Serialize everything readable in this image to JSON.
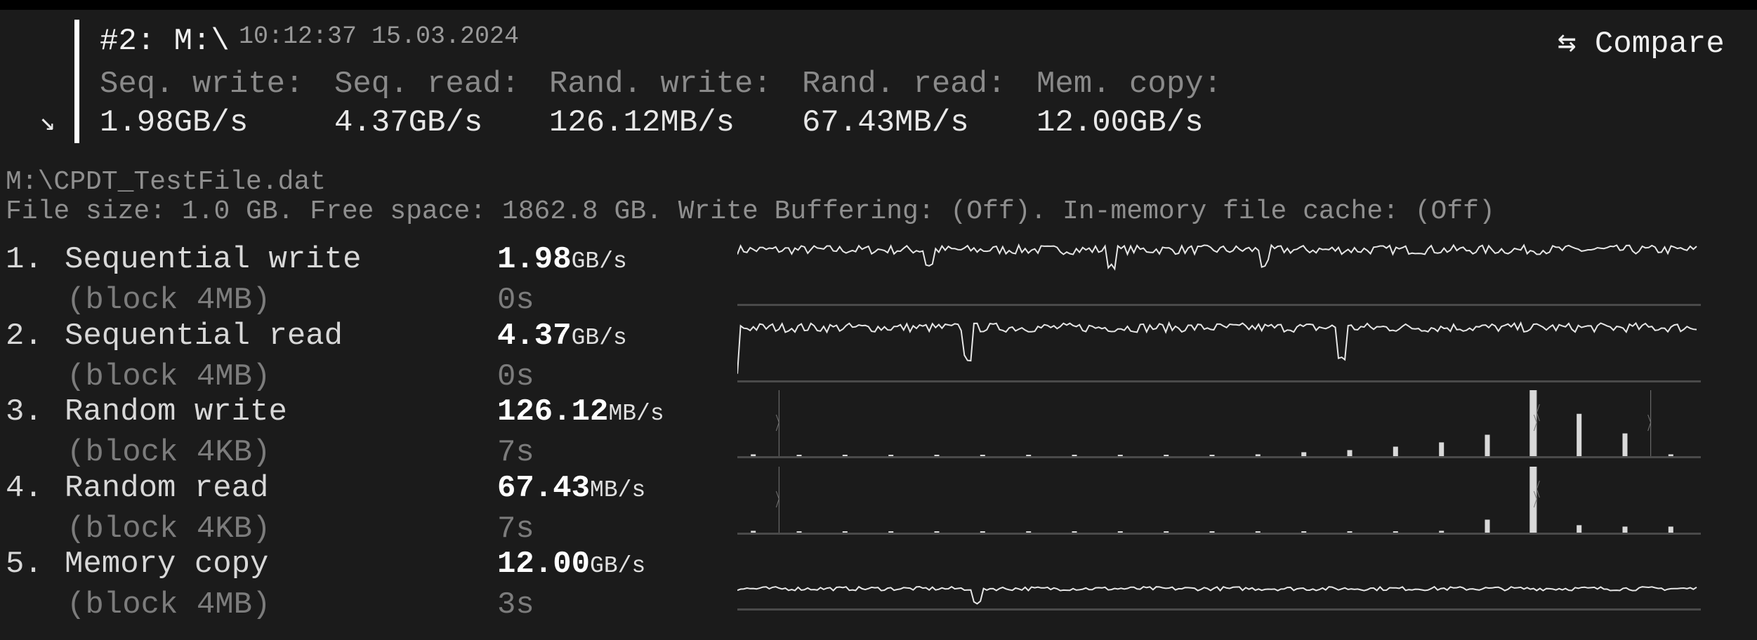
{
  "header": {
    "title": "#2: M:\\",
    "timestamp": "10:12:37 15.03.2024",
    "compare_label": "⇆ Compare",
    "collapse_icon": "↘",
    "columns": [
      {
        "label": "Seq. write:",
        "value": "1.98GB/s"
      },
      {
        "label": "Seq. read:",
        "value": "4.37GB/s"
      },
      {
        "label": "Rand. write:",
        "value": "126.12MB/s"
      },
      {
        "label": "Rand. read:",
        "value": "67.43MB/s"
      },
      {
        "label": "Mem. copy:",
        "value": "12.00GB/s"
      }
    ]
  },
  "file": {
    "path": "M:\\CPDT_TestFile.dat",
    "info": "File size: 1.0 GB. Free space: 1862.8 GB. Write Buffering: (Off). In-memory file cache: (Off)"
  },
  "tests": [
    {
      "num": "1.",
      "name": "Sequential write",
      "block": "(block 4MB)",
      "value": "1.98",
      "unit": "GB/s",
      "time": "0s"
    },
    {
      "num": "2.",
      "name": "Sequential read",
      "block": "(block 4MB)",
      "value": "4.37",
      "unit": "GB/s",
      "time": "0s"
    },
    {
      "num": "3.",
      "name": "Random write",
      "block": "(block 4KB)",
      "value": "126.12",
      "unit": "MB/s",
      "time": "7s"
    },
    {
      "num": "4.",
      "name": "Random read",
      "block": "(block 4KB)",
      "value": "67.43",
      "unit": "MB/s",
      "time": "7s"
    },
    {
      "num": "5.",
      "name": "Memory copy",
      "block": "(block 4MB)",
      "value": "12.00",
      "unit": "GB/s",
      "time": "3s"
    }
  ],
  "colors": {
    "background": "#1b1b1b",
    "trace": "#e6e6e6",
    "baseline": "#4a4a4a"
  },
  "chart_data": [
    {
      "type": "line",
      "test": "Sequential write",
      "level": 0.82,
      "dips": [
        0.2,
        0.39,
        0.55
      ]
    },
    {
      "type": "line",
      "test": "Sequential read",
      "level": 0.8,
      "dips": [
        0.24,
        0.63
      ]
    },
    {
      "type": "bar",
      "test": "Random write",
      "values": [
        0.028,
        0.018,
        0.007,
        0.007,
        0.007,
        0.007,
        0.007,
        0.018,
        0.018,
        0.018,
        0.018,
        0.028,
        0.06,
        0.092,
        0.144,
        0.208,
        0.324,
        1.0,
        0.641,
        0.345,
        0.028
      ],
      "markers": [
        1,
        17,
        20
      ]
    },
    {
      "type": "bar",
      "test": "Random read",
      "values": [
        0.028,
        0.018,
        0.007,
        0.007,
        0.007,
        0.007,
        0.007,
        0.007,
        0.007,
        0.007,
        0.007,
        0.007,
        0.007,
        0.007,
        0.018,
        0.028,
        0.197,
        1.0,
        0.113,
        0.092,
        0.092
      ],
      "markers": [
        1,
        17
      ]
    },
    {
      "type": "line",
      "test": "Memory copy",
      "level": 0.3,
      "dips": [
        0.25
      ]
    }
  ]
}
